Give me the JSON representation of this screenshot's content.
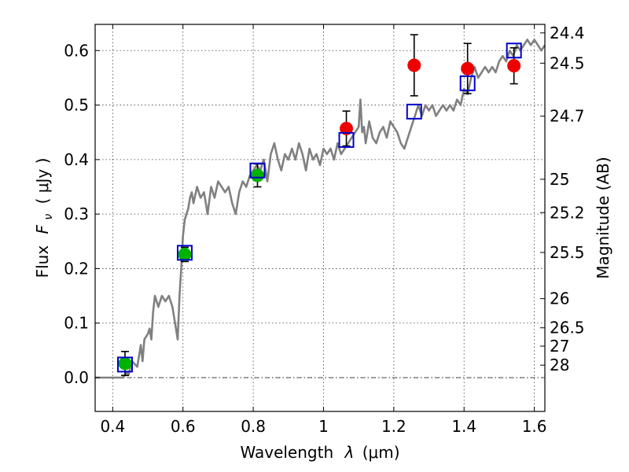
{
  "chart_data": {
    "type": "scatter",
    "xlabel": "Wavelength",
    "xlabel_symbol": "λ",
    "xlabel_unit": "(μm)",
    "ylabel": "Flux",
    "ylabel_symbol": "F",
    "ylabel_sub": "ν",
    "ylabel_unit": "( μJy )",
    "y2label": "Magnitude (AB)",
    "xlim": [
      0.35,
      1.63
    ],
    "ylim": [
      -0.062,
      0.648
    ],
    "xticks": [
      0.4,
      0.6,
      0.8,
      1.0,
      1.2,
      1.4,
      1.6
    ],
    "xtick_labels": [
      "0.4",
      "0.6",
      "0.8",
      "1",
      "1.2",
      "1.4",
      "1.6"
    ],
    "yticks": [
      0.0,
      0.1,
      0.2,
      0.3,
      0.4,
      0.5,
      0.6
    ],
    "ytick_labels": [
      "0.0",
      "0.1",
      "0.2",
      "0.3",
      "0.4",
      "0.5",
      "0.6"
    ],
    "mag_ticks": [
      {
        "label": "24.4",
        "flux": 0.6324
      },
      {
        "label": "24.5",
        "flux": 0.5768
      },
      {
        "label": "24.7",
        "flux": 0.4797
      },
      {
        "label": "25",
        "flux": 0.3639
      },
      {
        "label": "25.2",
        "flux": 0.3027
      },
      {
        "label": "25.5",
        "flux": 0.2296
      },
      {
        "label": "26",
        "flux": 0.1449
      },
      {
        "label": "26.5",
        "flux": 0.0914
      },
      {
        "label": "27",
        "flux": 0.0577
      },
      {
        "label": "28",
        "flux": 0.0229
      }
    ],
    "zero_line": 0.0,
    "grid": true,
    "series": [
      {
        "name": "template spectrum",
        "kind": "line",
        "color": "#808080",
        "x": [
          0.35,
          0.43,
          0.44,
          0.445,
          0.455,
          0.47,
          0.48,
          0.485,
          0.49,
          0.5,
          0.505,
          0.51,
          0.515,
          0.52,
          0.53,
          0.54,
          0.55,
          0.56,
          0.57,
          0.575,
          0.58,
          0.585,
          0.59,
          0.595,
          0.6,
          0.605,
          0.61,
          0.615,
          0.62,
          0.625,
          0.63,
          0.64,
          0.65,
          0.66,
          0.67,
          0.68,
          0.69,
          0.7,
          0.71,
          0.72,
          0.73,
          0.74,
          0.75,
          0.76,
          0.77,
          0.78,
          0.79,
          0.8,
          0.81,
          0.82,
          0.83,
          0.84,
          0.85,
          0.86,
          0.87,
          0.88,
          0.89,
          0.9,
          0.91,
          0.92,
          0.93,
          0.94,
          0.95,
          0.96,
          0.97,
          0.98,
          0.99,
          1.0,
          1.01,
          1.02,
          1.03,
          1.04,
          1.05,
          1.06,
          1.07,
          1.08,
          1.09,
          1.1,
          1.105,
          1.11,
          1.115,
          1.12,
          1.13,
          1.14,
          1.15,
          1.16,
          1.17,
          1.18,
          1.19,
          1.2,
          1.21,
          1.22,
          1.23,
          1.24,
          1.25,
          1.26,
          1.27,
          1.28,
          1.29,
          1.3,
          1.31,
          1.32,
          1.33,
          1.34,
          1.35,
          1.36,
          1.37,
          1.38,
          1.39,
          1.4,
          1.41,
          1.42,
          1.43,
          1.44,
          1.45,
          1.46,
          1.47,
          1.48,
          1.49,
          1.5,
          1.51,
          1.52,
          1.53,
          1.54,
          1.55,
          1.56,
          1.57,
          1.58,
          1.59,
          1.6,
          1.61,
          1.62,
          1.63
        ],
        "y": [
          0.0,
          0.0,
          0.01,
          0.005,
          0.03,
          0.02,
          0.06,
          0.03,
          0.07,
          0.08,
          0.09,
          0.07,
          0.12,
          0.15,
          0.13,
          0.15,
          0.14,
          0.15,
          0.13,
          0.11,
          0.09,
          0.07,
          0.15,
          0.2,
          0.26,
          0.29,
          0.3,
          0.31,
          0.33,
          0.34,
          0.32,
          0.35,
          0.33,
          0.34,
          0.3,
          0.35,
          0.33,
          0.36,
          0.35,
          0.34,
          0.35,
          0.32,
          0.3,
          0.34,
          0.36,
          0.35,
          0.37,
          0.38,
          0.39,
          0.38,
          0.4,
          0.36,
          0.41,
          0.43,
          0.4,
          0.38,
          0.41,
          0.4,
          0.42,
          0.4,
          0.43,
          0.41,
          0.38,
          0.42,
          0.4,
          0.41,
          0.39,
          0.42,
          0.41,
          0.42,
          0.4,
          0.43,
          0.41,
          0.42,
          0.43,
          0.44,
          0.45,
          0.46,
          0.51,
          0.45,
          0.46,
          0.43,
          0.47,
          0.44,
          0.43,
          0.45,
          0.46,
          0.44,
          0.47,
          0.46,
          0.45,
          0.43,
          0.42,
          0.44,
          0.46,
          0.48,
          0.5,
          0.48,
          0.5,
          0.49,
          0.5,
          0.48,
          0.49,
          0.5,
          0.49,
          0.5,
          0.49,
          0.51,
          0.5,
          0.53,
          0.52,
          0.55,
          0.57,
          0.55,
          0.56,
          0.57,
          0.56,
          0.57,
          0.56,
          0.58,
          0.59,
          0.58,
          0.6,
          0.59,
          0.61,
          0.6,
          0.61,
          0.62,
          0.61,
          0.62,
          0.61,
          0.6,
          0.61
        ]
      },
      {
        "name": "green measurements",
        "kind": "points",
        "marker": "circle",
        "color": "#00b300",
        "x": [
          0.435,
          0.605,
          0.812
        ],
        "y": [
          0.026,
          0.226,
          0.371
        ],
        "yerr": [
          0.022,
          0.013,
          0.021
        ]
      },
      {
        "name": "red measurements",
        "kind": "points",
        "marker": "circle",
        "color": "#ee0000",
        "x": [
          1.065,
          1.258,
          1.41,
          1.542
        ],
        "y": [
          0.457,
          0.573,
          0.567,
          0.572
        ],
        "yerr": [
          0.032,
          0.056,
          0.046,
          0.033
        ]
      },
      {
        "name": "model synthetic photometry",
        "kind": "points",
        "marker": "open-square",
        "color": "#0000cc",
        "x": [
          0.435,
          0.605,
          0.812,
          1.065,
          1.258,
          1.41,
          1.542
        ],
        "y": [
          0.024,
          0.229,
          0.38,
          0.436,
          0.488,
          0.54,
          0.6
        ]
      }
    ]
  }
}
